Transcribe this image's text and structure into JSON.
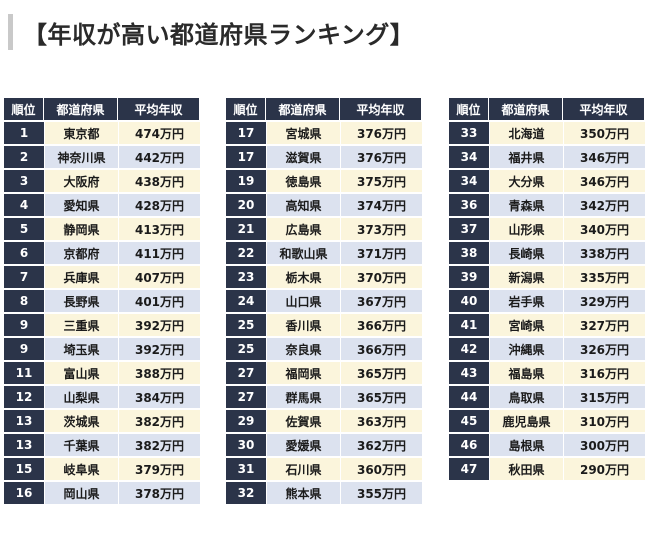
{
  "title": "【年収が高い都道府県ランキング】",
  "headers": {
    "rank": "順位",
    "prefecture": "都道府県",
    "income": "平均年収"
  },
  "columns": [
    [
      {
        "rank": "1",
        "prefecture": "東京都",
        "income": "474万円"
      },
      {
        "rank": "2",
        "prefecture": "神奈川県",
        "income": "442万円"
      },
      {
        "rank": "3",
        "prefecture": "大阪府",
        "income": "438万円"
      },
      {
        "rank": "4",
        "prefecture": "愛知県",
        "income": "428万円"
      },
      {
        "rank": "5",
        "prefecture": "静岡県",
        "income": "413万円"
      },
      {
        "rank": "6",
        "prefecture": "京都府",
        "income": "411万円"
      },
      {
        "rank": "7",
        "prefecture": "兵庫県",
        "income": "407万円"
      },
      {
        "rank": "8",
        "prefecture": "長野県",
        "income": "401万円"
      },
      {
        "rank": "9",
        "prefecture": "三重県",
        "income": "392万円"
      },
      {
        "rank": "9",
        "prefecture": "埼玉県",
        "income": "392万円"
      },
      {
        "rank": "11",
        "prefecture": "富山県",
        "income": "388万円"
      },
      {
        "rank": "12",
        "prefecture": "山梨県",
        "income": "384万円"
      },
      {
        "rank": "13",
        "prefecture": "茨城県",
        "income": "382万円"
      },
      {
        "rank": "13",
        "prefecture": "千葉県",
        "income": "382万円"
      },
      {
        "rank": "15",
        "prefecture": "岐阜県",
        "income": "379万円"
      },
      {
        "rank": "16",
        "prefecture": "岡山県",
        "income": "378万円"
      }
    ],
    [
      {
        "rank": "17",
        "prefecture": "宮城県",
        "income": "376万円"
      },
      {
        "rank": "17",
        "prefecture": "滋賀県",
        "income": "376万円"
      },
      {
        "rank": "19",
        "prefecture": "徳島県",
        "income": "375万円"
      },
      {
        "rank": "20",
        "prefecture": "高知県",
        "income": "374万円"
      },
      {
        "rank": "21",
        "prefecture": "広島県",
        "income": "373万円"
      },
      {
        "rank": "22",
        "prefecture": "和歌山県",
        "income": "371万円"
      },
      {
        "rank": "23",
        "prefecture": "栃木県",
        "income": "370万円"
      },
      {
        "rank": "24",
        "prefecture": "山口県",
        "income": "367万円"
      },
      {
        "rank": "25",
        "prefecture": "香川県",
        "income": "366万円"
      },
      {
        "rank": "25",
        "prefecture": "奈良県",
        "income": "366万円"
      },
      {
        "rank": "27",
        "prefecture": "福岡県",
        "income": "365万円"
      },
      {
        "rank": "27",
        "prefecture": "群馬県",
        "income": "365万円"
      },
      {
        "rank": "29",
        "prefecture": "佐賀県",
        "income": "363万円"
      },
      {
        "rank": "30",
        "prefecture": "愛媛県",
        "income": "362万円"
      },
      {
        "rank": "31",
        "prefecture": "石川県",
        "income": "360万円"
      },
      {
        "rank": "32",
        "prefecture": "熊本県",
        "income": "355万円"
      }
    ],
    [
      {
        "rank": "33",
        "prefecture": "北海道",
        "income": "350万円"
      },
      {
        "rank": "34",
        "prefecture": "福井県",
        "income": "346万円"
      },
      {
        "rank": "34",
        "prefecture": "大分県",
        "income": "346万円"
      },
      {
        "rank": "36",
        "prefecture": "青森県",
        "income": "342万円"
      },
      {
        "rank": "37",
        "prefecture": "山形県",
        "income": "340万円"
      },
      {
        "rank": "38",
        "prefecture": "長崎県",
        "income": "338万円"
      },
      {
        "rank": "39",
        "prefecture": "新潟県",
        "income": "335万円"
      },
      {
        "rank": "40",
        "prefecture": "岩手県",
        "income": "329万円"
      },
      {
        "rank": "41",
        "prefecture": "宮崎県",
        "income": "327万円"
      },
      {
        "rank": "42",
        "prefecture": "沖縄県",
        "income": "326万円"
      },
      {
        "rank": "43",
        "prefecture": "福島県",
        "income": "316万円"
      },
      {
        "rank": "44",
        "prefecture": "鳥取県",
        "income": "315万円"
      },
      {
        "rank": "45",
        "prefecture": "鹿児島県",
        "income": "310万円"
      },
      {
        "rank": "46",
        "prefecture": "島根県",
        "income": "300万円"
      },
      {
        "rank": "47",
        "prefecture": "秋田県",
        "income": "290万円"
      }
    ]
  ]
}
